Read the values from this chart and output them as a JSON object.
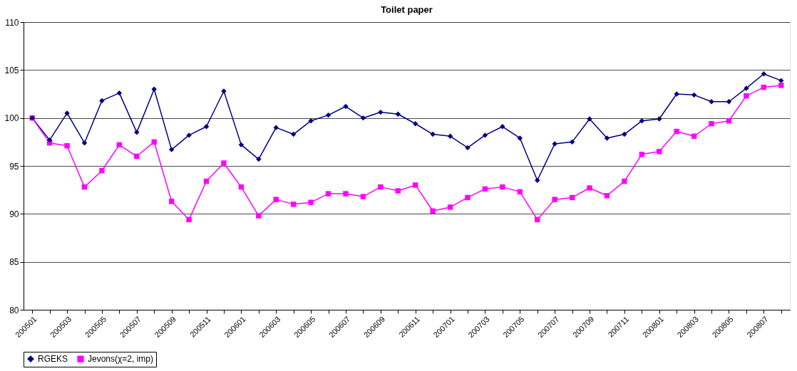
{
  "chart_data": {
    "type": "line",
    "title": "Toilet paper",
    "categories": [
      "200501",
      null,
      "200503",
      null,
      "200505",
      null,
      "200507",
      null,
      "200509",
      null,
      "200511",
      null,
      "200601",
      null,
      "200603",
      null,
      "200605",
      null,
      "200607",
      null,
      "200609",
      null,
      "200611",
      null,
      "200701",
      null,
      "200703",
      null,
      "200705",
      null,
      "200707",
      null,
      "200709",
      null,
      "200711",
      null,
      "200801",
      null,
      "200803",
      null,
      "200805",
      null,
      "200807",
      null
    ],
    "series": [
      {
        "name": "RGEKS",
        "color": "#000080",
        "marker": "diamond",
        "values": [
          100,
          97.7,
          100.5,
          97.4,
          101.8,
          102.6,
          98.5,
          103,
          96.7,
          98.2,
          99.1,
          102.8,
          97.2,
          95.7,
          99,
          98.3,
          99.7,
          100.3,
          101.2,
          100,
          100.6,
          100.4,
          99.4,
          98.3,
          98.1,
          96.9,
          98.2,
          99.1,
          97.9,
          93.5,
          97.3,
          97.5,
          99.9,
          97.9,
          98.3,
          99.7,
          99.9,
          102.5,
          102.4,
          101.7,
          101.7,
          103.1,
          104.6,
          103.9
        ]
      },
      {
        "name": "Jevons(χ=2, imp)",
        "color": "#ff00ff",
        "marker": "square",
        "values": [
          100,
          97.4,
          97.1,
          92.8,
          94.5,
          97.2,
          96,
          97.5,
          91.3,
          89.4,
          93.4,
          95.3,
          92.8,
          89.8,
          91.5,
          91,
          91.2,
          92.1,
          92.1,
          91.8,
          92.8,
          92.4,
          93,
          90.3,
          90.7,
          91.7,
          92.6,
          92.8,
          92.3,
          89.4,
          91.5,
          91.7,
          92.7,
          91.9,
          93.4,
          96.2,
          96.5,
          98.6,
          98.1,
          99.4,
          99.7,
          102.3,
          103.2,
          103.4
        ]
      }
    ],
    "ylim": [
      80,
      110
    ],
    "yticks": [
      80,
      85,
      90,
      95,
      100,
      105,
      110
    ],
    "grid": "y",
    "legend": "bottom",
    "line_style": "solid"
  }
}
